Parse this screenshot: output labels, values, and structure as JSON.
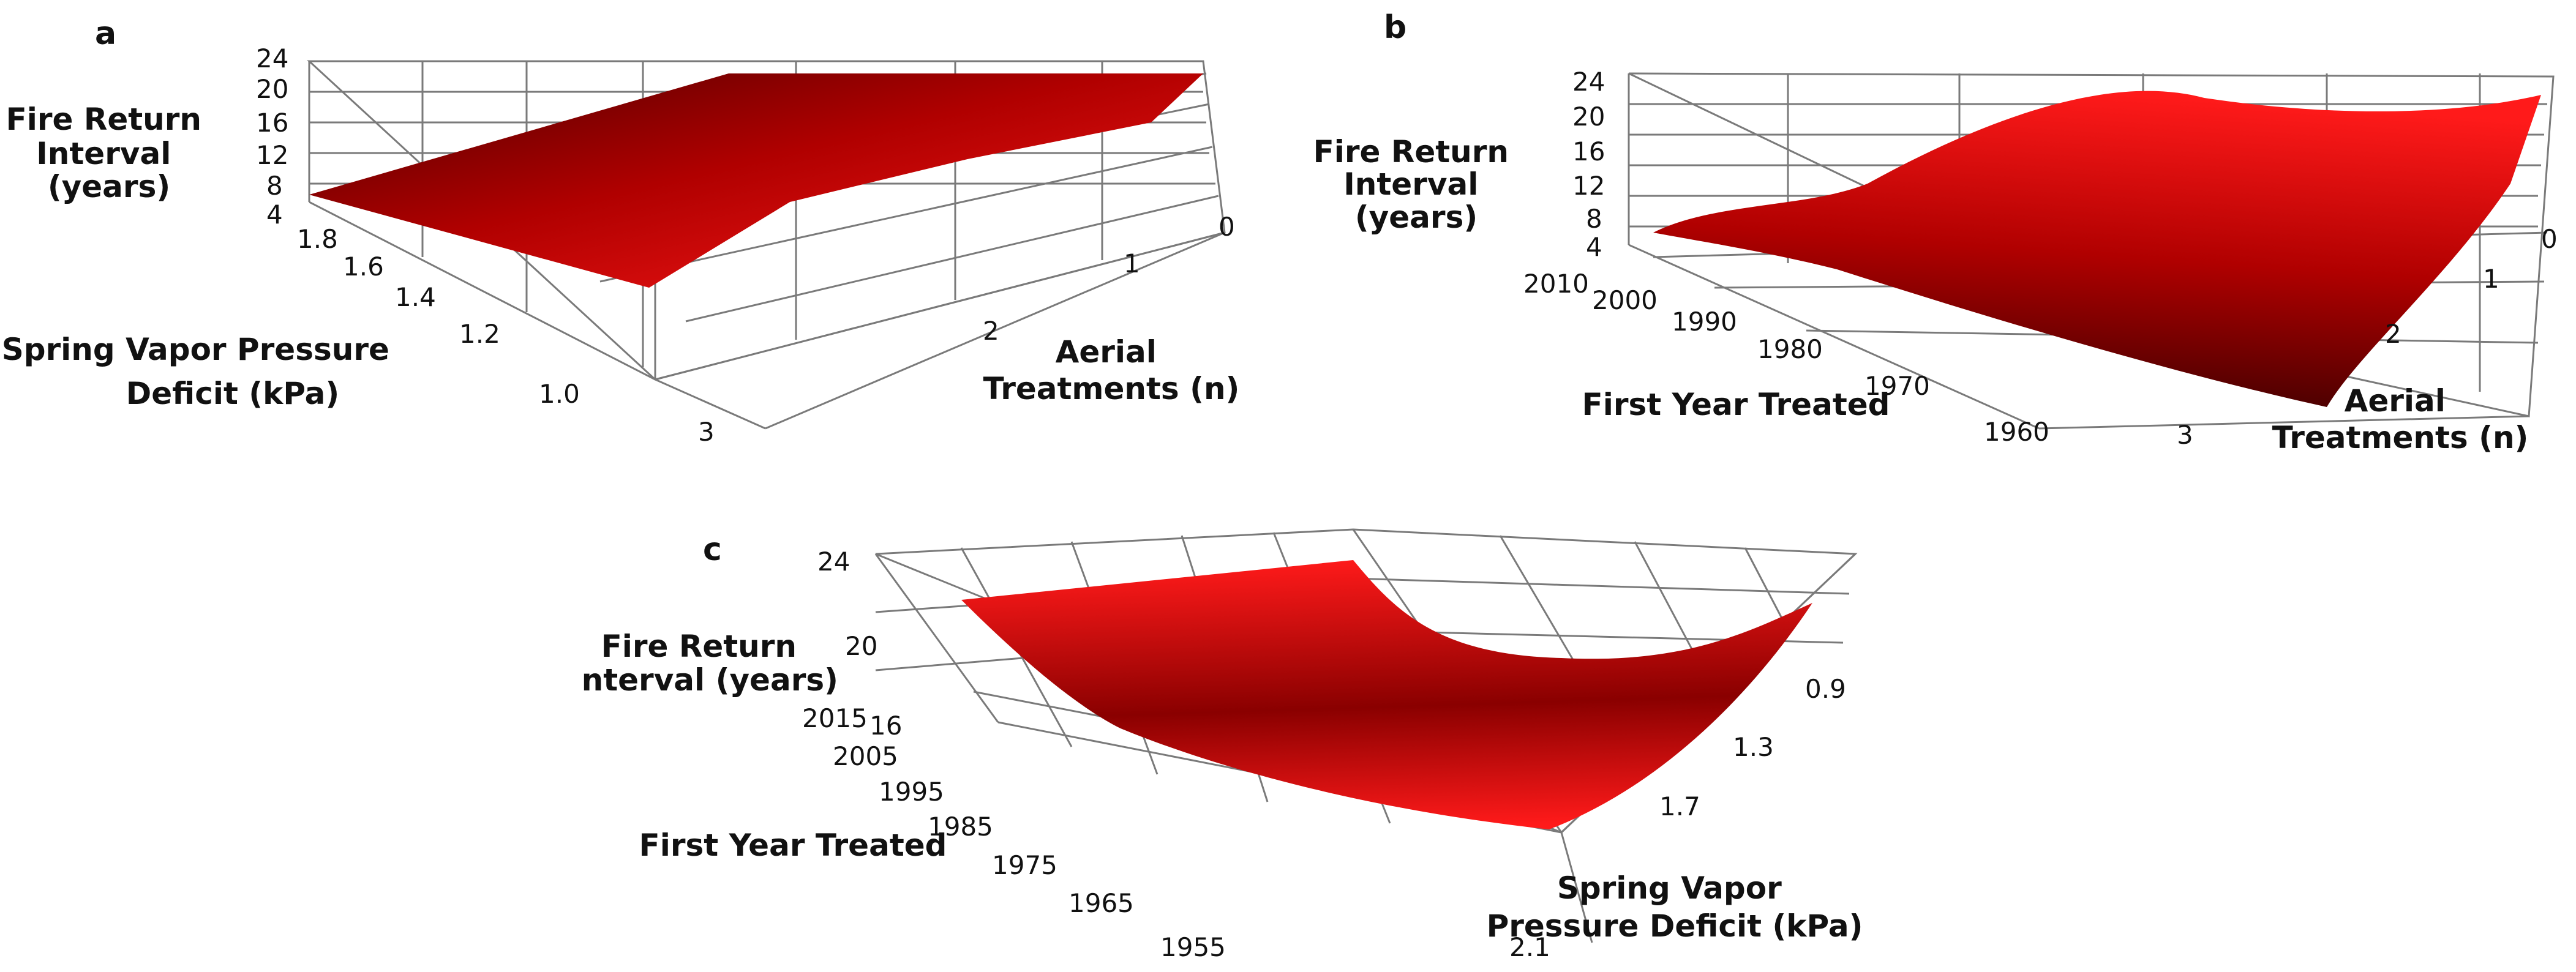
{
  "chart_data": [
    {
      "panel": "a",
      "type": "surface",
      "z_label_lines": [
        "Fire Return",
        "Interval",
        "(years)"
      ],
      "x_label_lines": [
        "Spring Vapor Pressure",
        "Deficit (kPa)"
      ],
      "y_label_lines": [
        "Aerial",
        "Treatments (n)"
      ],
      "z_ticks": [
        "24",
        "20",
        "16",
        "12",
        "8",
        "4"
      ],
      "x_ticks": [
        "1.8",
        "1.6",
        "1.4",
        "1.2",
        "1.0"
      ],
      "y_ticks": [
        "0",
        "1",
        "2",
        "3"
      ],
      "zlim": [
        4,
        24
      ],
      "surface_corners": {
        "vpd_1.8_treat_3": 5.5,
        "vpd_1.0_treat_3": 7,
        "vpd_1.8_treat_0": 22,
        "vpd_1.0_treat_0": 22
      }
    },
    {
      "panel": "b",
      "type": "surface",
      "z_label_lines": [
        "Fire Return",
        "Interval",
        "(years)"
      ],
      "x_label_lines": [
        "First Year Treated"
      ],
      "y_label_lines": [
        "Aerial",
        "Treatments (n)"
      ],
      "z_ticks": [
        "24",
        "20",
        "16",
        "12",
        "8",
        "4"
      ],
      "x_ticks": [
        "2010",
        "2000",
        "1990",
        "1980",
        "1970",
        "1960"
      ],
      "y_ticks": [
        "0",
        "1",
        "2",
        "3"
      ],
      "zlim": [
        4,
        24
      ],
      "surface_corners": {
        "year_2010_treat_3": 8,
        "year_1960_treat_3": 4,
        "year_2010_treat_0": 22,
        "year_1960_treat_0": 22
      }
    },
    {
      "panel": "c",
      "type": "surface",
      "z_label_lines": [
        "Fire Return",
        "Interval (years)"
      ],
      "x_label_lines": [
        "First Year Treated"
      ],
      "y_label_lines": [
        "Spring Vapor",
        "Pressure Deficit (kPa)"
      ],
      "z_ticks": [
        "24",
        "20",
        "16"
      ],
      "x_ticks": [
        "2015",
        "2005",
        "1995",
        "1985",
        "1975",
        "1965",
        "1955"
      ],
      "y_ticks": [
        "0.9",
        "1.3",
        "1.7",
        "2.1"
      ],
      "zlim": [
        14,
        24
      ],
      "surface_corners": {
        "year_2015_vpd_0.9": 22,
        "year_2015_vpd_2.1": 24,
        "year_1955_vpd_0.9": 22,
        "year_1955_vpd_2.1": 15
      }
    }
  ]
}
